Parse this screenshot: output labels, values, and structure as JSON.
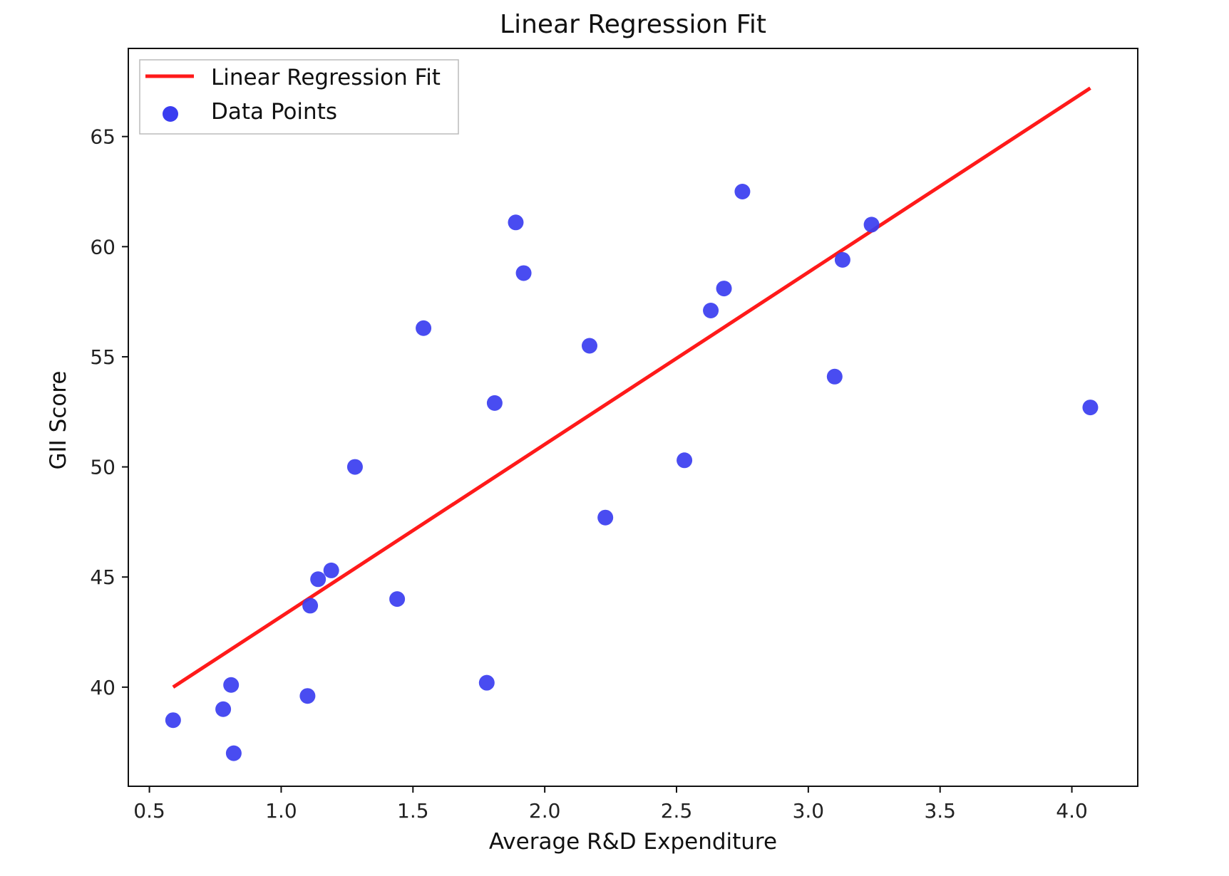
{
  "chart_data": {
    "type": "scatter",
    "title": "Linear Regression Fit",
    "xlabel": "Average R&D Expenditure",
    "ylabel": "GII Score",
    "xlim": [
      0.42,
      4.25
    ],
    "ylim": [
      35.5,
      69
    ],
    "x_ticks": [
      "0.5",
      "1.0",
      "1.5",
      "2.0",
      "2.5",
      "3.0",
      "3.5",
      "4.0"
    ],
    "y_ticks": [
      "40",
      "45",
      "50",
      "55",
      "60",
      "65"
    ],
    "grid": false,
    "legend_position": "top-left",
    "series": [
      {
        "name": "Linear Regression Fit",
        "kind": "line",
        "color": "#ff1a1a",
        "x": [
          0.59,
          4.07
        ],
        "y": [
          40.0,
          67.2
        ]
      },
      {
        "name": "Data Points",
        "kind": "scatter",
        "color": "#3a3df0",
        "points": [
          [
            0.59,
            38.5
          ],
          [
            0.78,
            39.0
          ],
          [
            0.81,
            40.1
          ],
          [
            0.82,
            37.0
          ],
          [
            1.1,
            39.6
          ],
          [
            1.11,
            43.7
          ],
          [
            1.14,
            44.9
          ],
          [
            1.19,
            45.3
          ],
          [
            1.28,
            50.0
          ],
          [
            1.44,
            44.0
          ],
          [
            1.54,
            56.3
          ],
          [
            1.78,
            40.2
          ],
          [
            1.81,
            52.9
          ],
          [
            1.89,
            61.1
          ],
          [
            1.92,
            58.8
          ],
          [
            2.17,
            55.5
          ],
          [
            2.23,
            47.7
          ],
          [
            2.53,
            50.3
          ],
          [
            2.63,
            57.1
          ],
          [
            2.68,
            58.1
          ],
          [
            2.75,
            62.5
          ],
          [
            3.1,
            54.1
          ],
          [
            3.13,
            59.4
          ],
          [
            3.24,
            61.0
          ],
          [
            4.07,
            52.7
          ]
        ]
      }
    ]
  }
}
